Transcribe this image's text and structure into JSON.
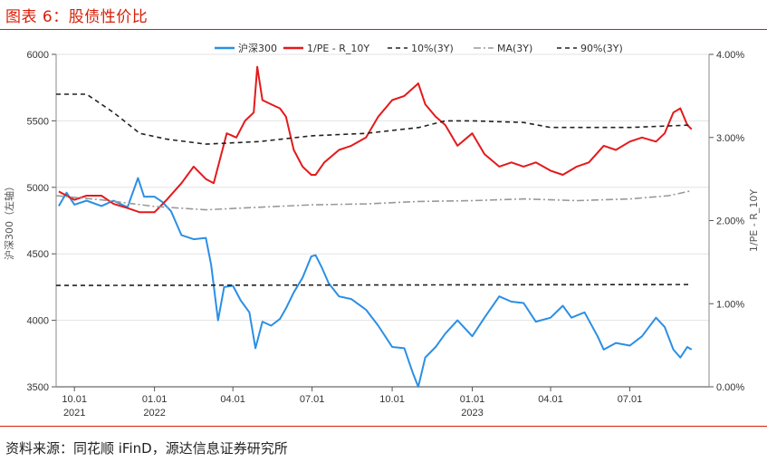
{
  "figure": {
    "title": "图表 6：股债性价比",
    "source": "资料来源：同花顺 iFinD，源达信息证券研究所"
  },
  "chart_data": {
    "type": "line",
    "title": "",
    "x_range": [
      "2021-09-10",
      "2023-09-30"
    ],
    "x_ticks": [
      {
        "date": "2021-10-01",
        "label": "10.01",
        "year": "2021"
      },
      {
        "date": "2022-01-01",
        "label": "01.01",
        "year": "2022"
      },
      {
        "date": "2022-04-01",
        "label": "04.01",
        "year": ""
      },
      {
        "date": "2022-07-01",
        "label": "07.01",
        "year": ""
      },
      {
        "date": "2022-10-01",
        "label": "10.01",
        "year": ""
      },
      {
        "date": "2023-01-01",
        "label": "01.01",
        "year": "2023"
      },
      {
        "date": "2023-04-01",
        "label": "04.01",
        "year": ""
      },
      {
        "date": "2023-07-01",
        "label": "07.01",
        "year": ""
      }
    ],
    "y_left": {
      "label": "沪深300（左轴）",
      "range": [
        3500,
        6000
      ],
      "ticks": [
        3500,
        4000,
        4500,
        5000,
        5500,
        6000
      ]
    },
    "y_right": {
      "label": "1/PE - R_10Y",
      "range": [
        0,
        4
      ],
      "ticks": [
        "0.00%",
        "1.00%",
        "2.00%",
        "3.00%",
        "4.00%"
      ]
    },
    "grid": true,
    "legend_position": "top-center",
    "series": [
      {
        "name": "沪深300",
        "axis": "left",
        "color": "#2b8fe5",
        "style": "solid",
        "points": [
          [
            "2021-09-13",
            4860
          ],
          [
            "2021-09-22",
            4960
          ],
          [
            "2021-10-01",
            4870
          ],
          [
            "2021-10-15",
            4900
          ],
          [
            "2021-11-01",
            4860
          ],
          [
            "2021-11-15",
            4900
          ],
          [
            "2021-12-01",
            4850
          ],
          [
            "2021-12-13",
            5070
          ],
          [
            "2021-12-20",
            4930
          ],
          [
            "2022-01-01",
            4930
          ],
          [
            "2022-01-10",
            4890
          ],
          [
            "2022-01-20",
            4820
          ],
          [
            "2022-02-01",
            4640
          ],
          [
            "2022-02-15",
            4610
          ],
          [
            "2022-03-01",
            4620
          ],
          [
            "2022-03-07",
            4420
          ],
          [
            "2022-03-15",
            4000
          ],
          [
            "2022-03-22",
            4250
          ],
          [
            "2022-04-01",
            4260
          ],
          [
            "2022-04-10",
            4150
          ],
          [
            "2022-04-20",
            4060
          ],
          [
            "2022-04-27",
            3790
          ],
          [
            "2022-05-05",
            3990
          ],
          [
            "2022-05-15",
            3960
          ],
          [
            "2022-05-25",
            4010
          ],
          [
            "2022-06-01",
            4090
          ],
          [
            "2022-06-10",
            4210
          ],
          [
            "2022-06-20",
            4320
          ],
          [
            "2022-06-30",
            4480
          ],
          [
            "2022-07-05",
            4490
          ],
          [
            "2022-07-12",
            4400
          ],
          [
            "2022-07-20",
            4280
          ],
          [
            "2022-08-01",
            4180
          ],
          [
            "2022-08-15",
            4160
          ],
          [
            "2022-09-01",
            4080
          ],
          [
            "2022-09-15",
            3960
          ],
          [
            "2022-10-01",
            3800
          ],
          [
            "2022-10-15",
            3790
          ],
          [
            "2022-10-25",
            3600
          ],
          [
            "2022-10-31",
            3500
          ],
          [
            "2022-11-08",
            3720
          ],
          [
            "2022-11-20",
            3800
          ],
          [
            "2022-12-01",
            3900
          ],
          [
            "2022-12-15",
            4000
          ],
          [
            "2023-01-01",
            3880
          ],
          [
            "2023-01-15",
            4020
          ],
          [
            "2023-02-01",
            4180
          ],
          [
            "2023-02-15",
            4140
          ],
          [
            "2023-03-01",
            4130
          ],
          [
            "2023-03-15",
            3990
          ],
          [
            "2023-04-01",
            4020
          ],
          [
            "2023-04-15",
            4110
          ],
          [
            "2023-04-25",
            4020
          ],
          [
            "2023-05-10",
            4060
          ],
          [
            "2023-05-25",
            3880
          ],
          [
            "2023-06-01",
            3780
          ],
          [
            "2023-06-15",
            3830
          ],
          [
            "2023-07-01",
            3810
          ],
          [
            "2023-07-15",
            3880
          ],
          [
            "2023-07-31",
            4020
          ],
          [
            "2023-08-10",
            3950
          ],
          [
            "2023-08-20",
            3780
          ],
          [
            "2023-08-28",
            3720
          ],
          [
            "2023-09-05",
            3800
          ],
          [
            "2023-09-10",
            3780
          ]
        ]
      },
      {
        "name": "1/PE - R_10Y",
        "axis": "right",
        "color": "#e31a1c",
        "style": "solid",
        "points": [
          [
            "2021-09-13",
            2.35
          ],
          [
            "2021-09-22",
            2.3
          ],
          [
            "2021-10-01",
            2.25
          ],
          [
            "2021-10-15",
            2.3
          ],
          [
            "2021-11-01",
            2.3
          ],
          [
            "2021-11-15",
            2.2
          ],
          [
            "2021-12-01",
            2.15
          ],
          [
            "2021-12-15",
            2.1
          ],
          [
            "2022-01-01",
            2.1
          ],
          [
            "2022-01-15",
            2.25
          ],
          [
            "2022-02-01",
            2.45
          ],
          [
            "2022-02-15",
            2.65
          ],
          [
            "2022-03-01",
            2.5
          ],
          [
            "2022-03-10",
            2.45
          ],
          [
            "2022-03-15",
            2.65
          ],
          [
            "2022-03-25",
            3.05
          ],
          [
            "2022-04-05",
            3.0
          ],
          [
            "2022-04-15",
            3.2
          ],
          [
            "2022-04-25",
            3.3
          ],
          [
            "2022-04-29",
            3.85
          ],
          [
            "2022-05-05",
            3.45
          ],
          [
            "2022-05-15",
            3.4
          ],
          [
            "2022-05-25",
            3.35
          ],
          [
            "2022-06-01",
            3.25
          ],
          [
            "2022-06-10",
            2.85
          ],
          [
            "2022-06-20",
            2.65
          ],
          [
            "2022-06-30",
            2.55
          ],
          [
            "2022-07-05",
            2.55
          ],
          [
            "2022-07-15",
            2.7
          ],
          [
            "2022-08-01",
            2.85
          ],
          [
            "2022-08-15",
            2.9
          ],
          [
            "2022-09-01",
            3.0
          ],
          [
            "2022-09-15",
            3.25
          ],
          [
            "2022-10-01",
            3.45
          ],
          [
            "2022-10-15",
            3.5
          ],
          [
            "2022-10-31",
            3.65
          ],
          [
            "2022-11-08",
            3.4
          ],
          [
            "2022-11-20",
            3.25
          ],
          [
            "2022-12-01",
            3.15
          ],
          [
            "2022-12-15",
            2.9
          ],
          [
            "2023-01-01",
            3.05
          ],
          [
            "2023-01-15",
            2.8
          ],
          [
            "2023-02-01",
            2.65
          ],
          [
            "2023-02-15",
            2.7
          ],
          [
            "2023-03-01",
            2.65
          ],
          [
            "2023-03-15",
            2.7
          ],
          [
            "2023-04-01",
            2.6
          ],
          [
            "2023-04-15",
            2.55
          ],
          [
            "2023-05-01",
            2.65
          ],
          [
            "2023-05-15",
            2.7
          ],
          [
            "2023-06-01",
            2.9
          ],
          [
            "2023-06-15",
            2.85
          ],
          [
            "2023-07-01",
            2.95
          ],
          [
            "2023-07-15",
            3.0
          ],
          [
            "2023-07-31",
            2.95
          ],
          [
            "2023-08-10",
            3.05
          ],
          [
            "2023-08-20",
            3.3
          ],
          [
            "2023-08-28",
            3.35
          ],
          [
            "2023-09-05",
            3.15
          ],
          [
            "2023-09-10",
            3.1
          ]
        ]
      },
      {
        "name": "10%(3Y)",
        "axis": "right",
        "color": "#222222",
        "style": "dashed",
        "points": [
          [
            "2021-09-10",
            1.22
          ],
          [
            "2023-09-10",
            1.23
          ]
        ]
      },
      {
        "name": "MA(3Y)",
        "axis": "right",
        "color": "#999999",
        "style": "dashdot",
        "points": [
          [
            "2021-09-10",
            2.3
          ],
          [
            "2021-11-01",
            2.25
          ],
          [
            "2022-01-01",
            2.17
          ],
          [
            "2022-03-01",
            2.13
          ],
          [
            "2022-05-01",
            2.16
          ],
          [
            "2022-07-01",
            2.19
          ],
          [
            "2022-09-01",
            2.2
          ],
          [
            "2022-11-01",
            2.23
          ],
          [
            "2023-01-01",
            2.24
          ],
          [
            "2023-03-01",
            2.26
          ],
          [
            "2023-05-01",
            2.24
          ],
          [
            "2023-07-01",
            2.26
          ],
          [
            "2023-08-15",
            2.3
          ],
          [
            "2023-09-10",
            2.36
          ]
        ]
      },
      {
        "name": "90%(3Y)",
        "axis": "right",
        "color": "#222222",
        "style": "dashed",
        "points": [
          [
            "2021-09-10",
            3.52
          ],
          [
            "2021-10-15",
            3.52
          ],
          [
            "2021-11-15",
            3.3
          ],
          [
            "2021-12-15",
            3.05
          ],
          [
            "2022-01-15",
            2.98
          ],
          [
            "2022-03-01",
            2.92
          ],
          [
            "2022-05-01",
            2.95
          ],
          [
            "2022-07-01",
            3.02
          ],
          [
            "2022-09-01",
            3.05
          ],
          [
            "2022-11-01",
            3.12
          ],
          [
            "2022-12-01",
            3.2
          ],
          [
            "2023-01-01",
            3.2
          ],
          [
            "2023-03-01",
            3.18
          ],
          [
            "2023-04-01",
            3.12
          ],
          [
            "2023-07-01",
            3.12
          ],
          [
            "2023-09-10",
            3.15
          ]
        ]
      }
    ]
  }
}
